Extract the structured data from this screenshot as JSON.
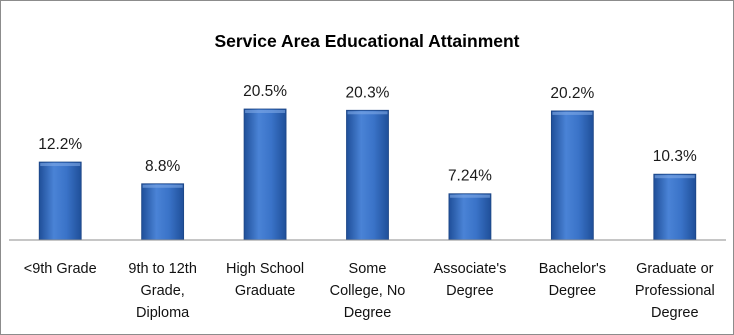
{
  "chart_data": {
    "type": "bar",
    "title": "Service Area Educational Attainment",
    "xlabel": "",
    "ylabel": "",
    "categories": [
      "<9th Grade",
      "9th to 12th Grade, Diploma",
      "High School Graduate",
      "Some College, No Degree",
      "Associate's Degree",
      "Bachelor's Degree",
      "Graduate or Professional Degree"
    ],
    "values": [
      12.2,
      8.8,
      20.5,
      20.3,
      7.24,
      20.2,
      10.3
    ],
    "value_labels": [
      "12.2%",
      "8.8%",
      "20.5%",
      "20.3%",
      "7.24%",
      "20.2%",
      "10.3%"
    ],
    "ylim": [
      0,
      20.5
    ],
    "grid": false,
    "legend": "none",
    "colors": {
      "bar_top": "#5a8edb",
      "bar_mid": "#2f6cc4",
      "bar_bottom": "#1f4f99",
      "axis": "#8c8c8c"
    }
  }
}
